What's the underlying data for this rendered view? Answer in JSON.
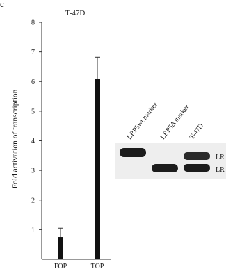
{
  "panel_letter": "c",
  "chart_data": {
    "type": "bar",
    "title": "T-47D",
    "xlabel": "",
    "ylabel": "Fold activation of transcription",
    "categories": [
      "FOP",
      "TOP"
    ],
    "values": [
      0.75,
      6.1
    ],
    "errors": [
      0.3,
      0.72
    ],
    "ylim": [
      0,
      8
    ],
    "yticks": [
      1,
      2,
      3,
      4,
      5,
      6,
      7,
      8
    ],
    "bar_color": "#111111",
    "grid": false
  },
  "blot": {
    "lanes": [
      "LRP5wt marker",
      "LRP5Δ marker",
      "T-47D"
    ],
    "band_labels": [
      "LR",
      "LR"
    ]
  }
}
